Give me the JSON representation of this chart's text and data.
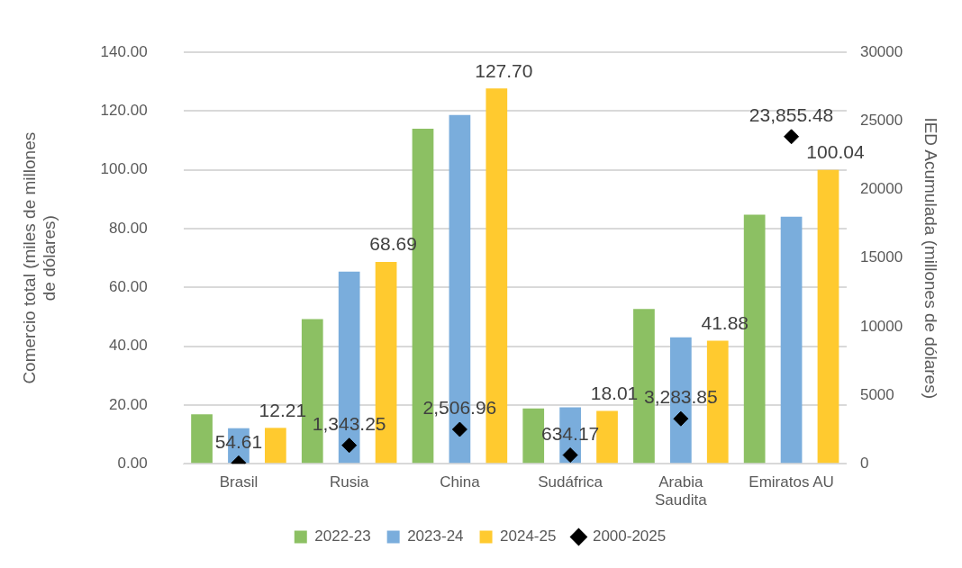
{
  "chart_data": {
    "type": "bar",
    "categories": [
      "Brasil",
      "Rusia",
      "China",
      "Sudáfrica",
      "Arabia Saudita",
      "Emiratos AU"
    ],
    "ylabel": "Comercio total (miles de millones de dólares)",
    "y2label": "IED Acumulada (millones de dólares)",
    "ylim": [
      0,
      140
    ],
    "yticks": [
      {
        "value": 0,
        "label": "0.00"
      },
      {
        "value": 20,
        "label": "20.00"
      },
      {
        "value": 40,
        "label": "40.00"
      },
      {
        "value": 60,
        "label": "60.00"
      },
      {
        "value": 80,
        "label": "80.00"
      },
      {
        "value": 100,
        "label": "100.00"
      },
      {
        "value": 120,
        "label": "120.00"
      },
      {
        "value": 140,
        "label": "140.00"
      }
    ],
    "y2lim": [
      0,
      30000
    ],
    "y2ticks": [
      0,
      5000,
      10000,
      15000,
      20000,
      25000,
      30000
    ],
    "grid": "y",
    "legend": "bottom",
    "series": [
      {
        "name": "2022-23",
        "color": "#8cc063",
        "values": [
          16.8,
          49.2,
          114.0,
          18.8,
          52.7,
          84.8
        ]
      },
      {
        "name": "2023-24",
        "color": "#7aaddc",
        "values": [
          12.1,
          65.4,
          118.7,
          19.2,
          43.0,
          84.1
        ]
      },
      {
        "name": "2024-25",
        "color": "#ffca2f",
        "values": [
          12.21,
          68.69,
          127.7,
          18.01,
          41.88,
          100.04
        ],
        "value_labels": [
          "12.21",
          "68.69",
          "127.70",
          "18.01",
          "41.88",
          "100.04"
        ]
      },
      {
        "name": "2000-2025",
        "type": "scatter",
        "axis": "y2",
        "marker": "diamond",
        "color": "#000000",
        "x": [
          "Brasil",
          "Rusia",
          "China",
          "Sudáfrica",
          "Arabia Saudita",
          "Emiratos AU"
        ],
        "values": [
          54.61,
          1343.25,
          2506.96,
          634.17,
          3283.85,
          23855.48
        ],
        "value_labels": [
          "54.61",
          "1,343.25",
          "2,506.96",
          "634.17",
          "3,283.85",
          "23,855.48"
        ]
      }
    ]
  }
}
